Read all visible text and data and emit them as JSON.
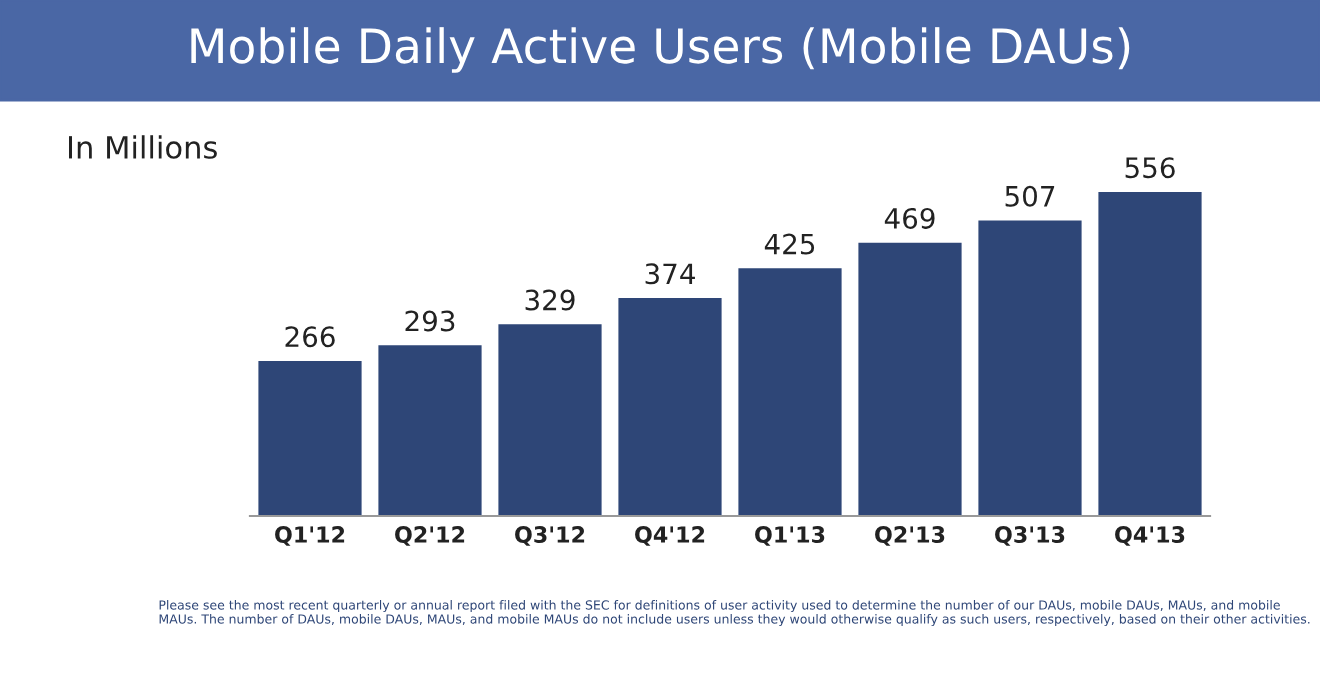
{
  "chart_data": {
    "type": "bar",
    "title": "Mobile Daily Active Users (Mobile DAUs)",
    "subtitle": "In Millions",
    "categories": [
      "Q1'12",
      "Q2'12",
      "Q3'12",
      "Q4'12",
      "Q1'13",
      "Q2'13",
      "Q3'13",
      "Q4'13"
    ],
    "values": [
      266,
      293,
      329,
      374,
      425,
      469,
      507,
      556
    ],
    "color": "#2e4677",
    "data_labels": true,
    "grid": false,
    "legend": false,
    "annotations": [
      "Please see the most recent quarterly or annual report filed with the SEC for definitions of user activity used to determine the number of our DAUs, mobile DAUs, MAUs, and mobile MAUs. The number of DAUs, mobile DAUs, MAUs, and mobile MAUs do not include users unless they would otherwise qualify as such users, respectively, based on their other activities."
    ]
  }
}
